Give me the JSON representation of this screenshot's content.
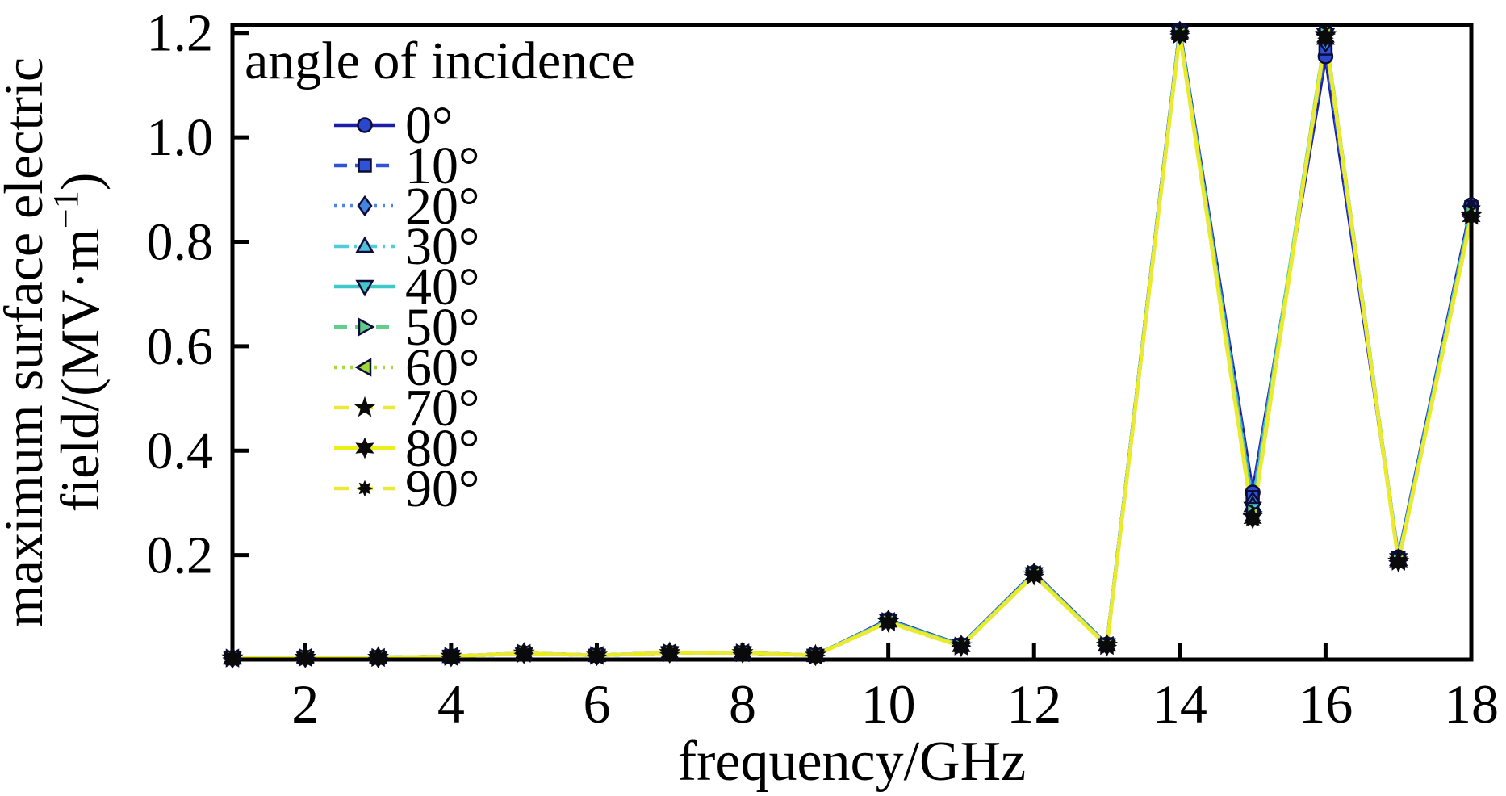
{
  "figure": {
    "background": "#ffffff",
    "frame_color": "#000000"
  },
  "chart_data": {
    "type": "line",
    "title": "",
    "xlabel": "frequency/GHz",
    "ylabel_line1": "maximum surface electric",
    "ylabel_line2": {
      "prefix": "field/(MV·m",
      "superscript": "−1",
      "suffix": ")"
    },
    "legend_title": "angle of incidence",
    "legend_position": "upper-left-inside",
    "grid": false,
    "xlim": [
      1,
      18
    ],
    "ylim": [
      0,
      1.215
    ],
    "xticks": {
      "values": [
        2,
        4,
        6,
        8,
        10,
        12,
        14,
        16,
        18
      ],
      "labels": [
        "2",
        "4",
        "6",
        "8",
        "10",
        "12",
        "14",
        "16",
        "18"
      ]
    },
    "yticks": {
      "values": [
        0.2,
        0.4,
        0.6,
        0.8,
        1.0,
        1.2
      ],
      "labels": [
        "0.2",
        "0.4",
        "0.6",
        "0.8",
        "1.0",
        "1.2"
      ]
    },
    "x": [
      1,
      2,
      3,
      4,
      5,
      6,
      7,
      8,
      9,
      10,
      11,
      12,
      13,
      14,
      15,
      16,
      17,
      18
    ],
    "series": [
      {
        "name": "0°",
        "line_color": "#1b1fa8",
        "line_style": "solid",
        "marker": "circle",
        "marker_fill": "#2a48cc",
        "marker_edge": "#0c0c38",
        "values": [
          0.003,
          0.004,
          0.004,
          0.006,
          0.012,
          0.008,
          0.013,
          0.013,
          0.008,
          0.076,
          0.028,
          0.166,
          0.029,
          1.205,
          0.32,
          1.155,
          0.196,
          0.87
        ]
      },
      {
        "name": "10°",
        "line_color": "#3154d4",
        "line_style": "dashed",
        "marker": "square",
        "marker_fill": "#2f52d6",
        "marker_edge": "#0c0c38",
        "values": [
          0.003,
          0.004,
          0.004,
          0.006,
          0.012,
          0.008,
          0.013,
          0.013,
          0.008,
          0.075,
          0.028,
          0.165,
          0.029,
          1.204,
          0.311,
          1.17,
          0.194,
          0.866
        ]
      },
      {
        "name": "20°",
        "line_color": "#4b87e2",
        "line_style": "dotted",
        "marker": "diamond",
        "marker_fill": "#4583e0",
        "marker_edge": "#0c0c38",
        "values": [
          0.003,
          0.004,
          0.004,
          0.006,
          0.012,
          0.008,
          0.013,
          0.013,
          0.008,
          0.075,
          0.027,
          0.165,
          0.028,
          1.203,
          0.302,
          1.182,
          0.193,
          0.863
        ]
      },
      {
        "name": "30°",
        "line_color": "#4fcdd8",
        "line_style": "dashdot",
        "marker": "triangle-up",
        "marker_fill": "#4ec0dc",
        "marker_edge": "#0c0c38",
        "values": [
          0.003,
          0.004,
          0.004,
          0.006,
          0.012,
          0.008,
          0.013,
          0.013,
          0.008,
          0.074,
          0.027,
          0.164,
          0.028,
          1.202,
          0.295,
          1.19,
          0.192,
          0.86
        ]
      },
      {
        "name": "40°",
        "line_color": "#3fc8c8",
        "line_style": "solid",
        "marker": "triangle-down",
        "marker_fill": "#43c8cc",
        "marker_edge": "#0c0c38",
        "values": [
          0.003,
          0.004,
          0.004,
          0.006,
          0.012,
          0.008,
          0.013,
          0.013,
          0.008,
          0.074,
          0.027,
          0.164,
          0.028,
          1.2,
          0.289,
          1.196,
          0.191,
          0.857
        ]
      },
      {
        "name": "50°",
        "line_color": "#62ce8c",
        "line_style": "dashed",
        "marker": "triangle-right",
        "marker_fill": "#5ecc84",
        "marker_edge": "#0c0c38",
        "values": [
          0.003,
          0.004,
          0.004,
          0.006,
          0.012,
          0.008,
          0.013,
          0.013,
          0.008,
          0.073,
          0.026,
          0.163,
          0.027,
          1.199,
          0.283,
          1.198,
          0.19,
          0.855
        ]
      },
      {
        "name": "60°",
        "line_color": "#a8da3c",
        "line_style": "dotted",
        "marker": "triangle-left",
        "marker_fill": "#a0d83a",
        "marker_edge": "#0c0c38",
        "values": [
          0.003,
          0.004,
          0.004,
          0.006,
          0.012,
          0.008,
          0.013,
          0.013,
          0.008,
          0.073,
          0.026,
          0.163,
          0.027,
          1.198,
          0.278,
          1.197,
          0.189,
          0.852
        ]
      },
      {
        "name": "70°",
        "line_color": "#e9e93c",
        "line_style": "longdash",
        "marker": "star5",
        "marker_fill": "#0a0a0a",
        "marker_edge": "#0a0a0a",
        "values": [
          0.003,
          0.004,
          0.004,
          0.006,
          0.012,
          0.008,
          0.013,
          0.013,
          0.008,
          0.072,
          0.026,
          0.162,
          0.027,
          1.197,
          0.274,
          1.195,
          0.188,
          0.85
        ]
      },
      {
        "name": "80°",
        "line_color": "#eded1c",
        "line_style": "solid",
        "marker": "star6",
        "marker_fill": "#0a0a0a",
        "marker_edge": "#0a0a0a",
        "values": [
          0.003,
          0.004,
          0.004,
          0.006,
          0.012,
          0.008,
          0.013,
          0.013,
          0.008,
          0.072,
          0.025,
          0.162,
          0.026,
          1.196,
          0.27,
          1.192,
          0.187,
          0.848
        ]
      },
      {
        "name": "90°",
        "line_color": "#e9e93c",
        "line_style": "longdash",
        "marker": "star8",
        "marker_fill": "#0a0a0a",
        "marker_edge": "#0a0a0a",
        "values": [
          0.003,
          0.004,
          0.004,
          0.006,
          0.012,
          0.008,
          0.013,
          0.013,
          0.008,
          0.071,
          0.025,
          0.161,
          0.026,
          1.195,
          0.267,
          1.19,
          0.186,
          0.846
        ]
      }
    ]
  }
}
